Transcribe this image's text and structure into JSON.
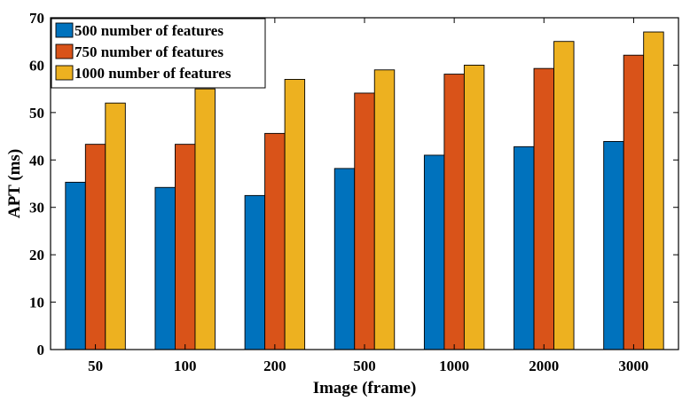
{
  "chart_data": {
    "type": "bar",
    "title": "",
    "xlabel": "Image (frame)",
    "ylabel": "APT (ms)",
    "ylim": [
      0,
      70
    ],
    "yticks": [
      0,
      10,
      20,
      30,
      40,
      50,
      60,
      70
    ],
    "grid": false,
    "legend_position": "top-left",
    "categories": [
      "50",
      "100",
      "200",
      "500",
      "1000",
      "2000",
      "3000"
    ],
    "series": [
      {
        "name": "500 number of features",
        "color": "#0072BD",
        "values": [
          35.3,
          34.2,
          32.5,
          38.2,
          41.0,
          42.8,
          43.9
        ]
      },
      {
        "name": "750 number of features",
        "color": "#D95319",
        "values": [
          43.3,
          43.3,
          45.6,
          54.1,
          58.1,
          59.3,
          62.1
        ]
      },
      {
        "name": "1000 number of features",
        "color": "#EDB120",
        "values": [
          52.0,
          55.0,
          57.0,
          59.0,
          60.0,
          65.0,
          67.0
        ]
      }
    ]
  }
}
